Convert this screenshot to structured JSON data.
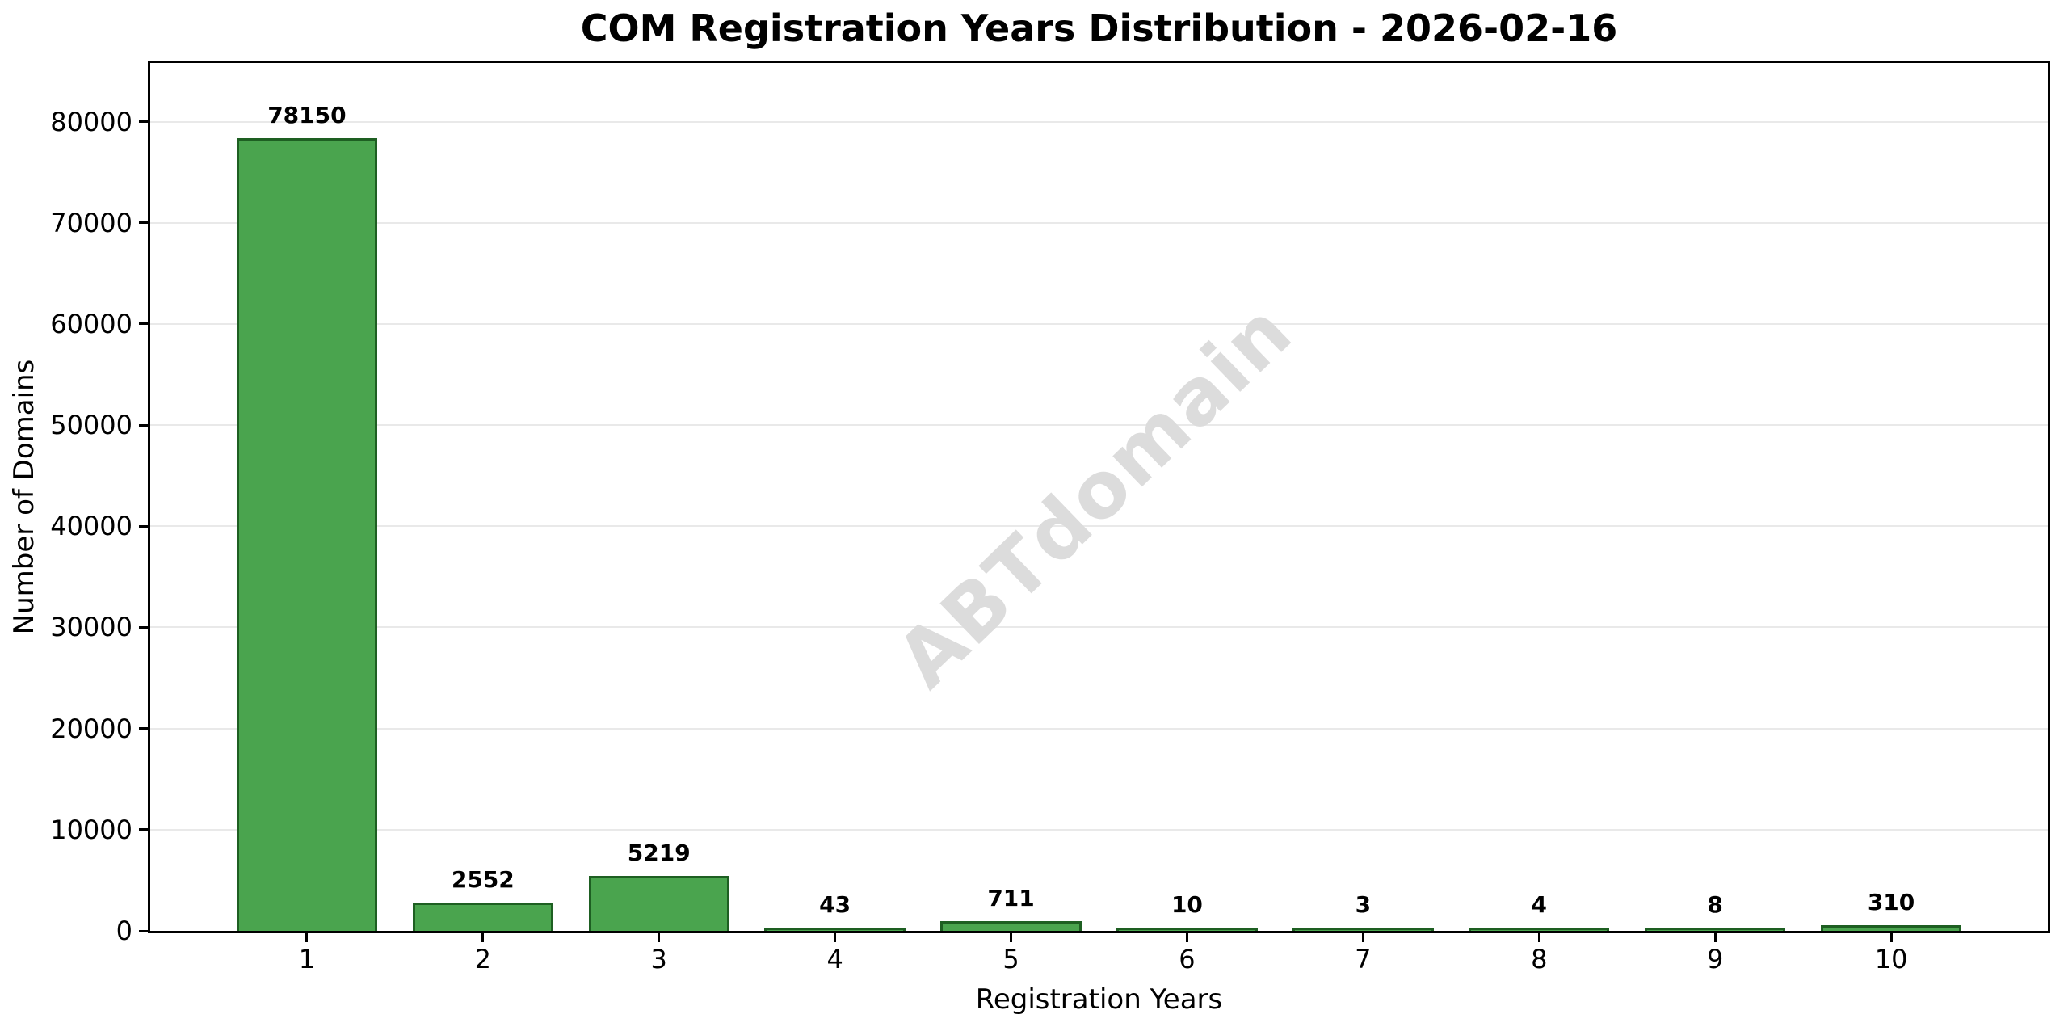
{
  "chart_data": {
    "type": "bar",
    "title": "COM Registration Years Distribution - 2026-02-16",
    "xlabel": "Registration Years",
    "ylabel": "Number of Domains",
    "categories": [
      "1",
      "2",
      "3",
      "4",
      "5",
      "6",
      "7",
      "8",
      "9",
      "10"
    ],
    "values": [
      78150,
      2552,
      5219,
      43,
      711,
      10,
      3,
      4,
      8,
      310
    ],
    "value_labels": [
      "78150",
      "2552",
      "5219",
      "43",
      "711",
      "10",
      "3",
      "4",
      "8",
      "310"
    ],
    "yticks": [
      0,
      10000,
      20000,
      30000,
      40000,
      50000,
      60000,
      70000,
      80000
    ],
    "ylim": [
      0,
      85800
    ],
    "xlim": [
      0.11,
      10.89
    ],
    "bar_width_data_units": 0.8,
    "grid": true,
    "legend": null,
    "watermark": "ABTdomain",
    "colors": {
      "bar_fill": "#4aa44e",
      "bar_edge": "#1e5f22",
      "gridline": "#e9e9e9",
      "axis": "#000000",
      "text": "#000000",
      "watermark": "#dcdcdc",
      "background": "#ffffff"
    }
  }
}
